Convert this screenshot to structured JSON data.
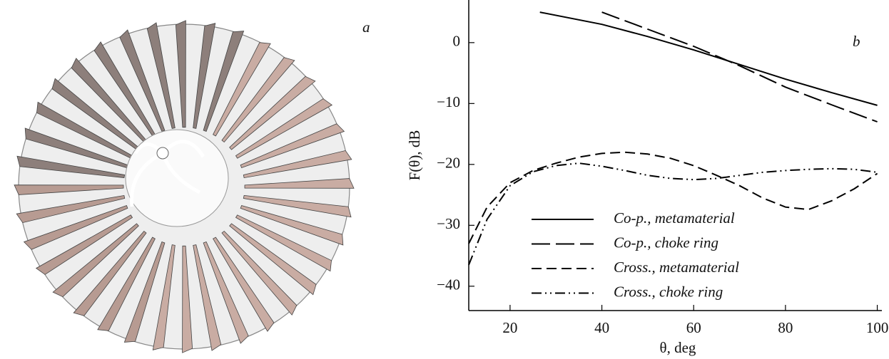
{
  "panel_a": {
    "label": "a"
  },
  "chart_data": {
    "type": "line",
    "panel_label": "b",
    "x_label": "θ, deg",
    "y_label": "F(θ), dB",
    "xlim": [
      11,
      101
    ],
    "ylim": [
      -44,
      7
    ],
    "xticks": [
      20,
      40,
      60,
      80,
      100
    ],
    "yticks": [
      {
        "value": -40,
        "label": "−40"
      },
      {
        "value": -30,
        "label": "−30"
      },
      {
        "value": -20,
        "label": "−20"
      },
      {
        "value": -10,
        "label": "−10"
      },
      0
    ],
    "series": [
      {
        "name": "Co-p., metamaterial",
        "color": "#000000",
        "dash": "solid",
        "x": [
          26.5,
          40,
          50,
          60,
          70,
          80,
          90,
          100
        ],
        "values": [
          5,
          3,
          1,
          -1.2,
          -3.6,
          -6,
          -8.2,
          -10.3
        ]
      },
      {
        "name": "Co-p., choke ring",
        "color": "#000000",
        "dash": "long-dash",
        "x": [
          40,
          50,
          60,
          70,
          80,
          90,
          100
        ],
        "values": [
          5,
          2.2,
          -0.6,
          -3.8,
          -7.3,
          -10.2,
          -13
        ]
      },
      {
        "name": "Cross., metamaterial",
        "color": "#000000",
        "dash": "dash",
        "x": [
          11,
          15,
          20,
          25,
          30,
          35,
          40,
          45,
          50,
          55,
          60,
          65,
          70,
          75,
          80,
          85,
          90,
          95,
          100
        ],
        "values": [
          -33,
          -27,
          -23,
          -21,
          -19.8,
          -18.8,
          -18.2,
          -18,
          -18.3,
          -19,
          -20.2,
          -21.8,
          -23.5,
          -25.5,
          -27,
          -27.4,
          -26,
          -24,
          -21.5
        ]
      },
      {
        "name": "Cross., choke ring",
        "color": "#000000",
        "dash": "dash-dot-dot",
        "x": [
          11,
          15,
          20,
          25,
          30,
          35,
          40,
          45,
          50,
          55,
          60,
          65,
          70,
          75,
          80,
          85,
          90,
          95,
          100
        ],
        "values": [
          -36.5,
          -29,
          -23.5,
          -21.2,
          -20.2,
          -19.8,
          -20.3,
          -21,
          -21.8,
          -22.3,
          -22.5,
          -22.3,
          -21.8,
          -21.3,
          -21,
          -20.8,
          -20.7,
          -20.8,
          -21.3
        ]
      }
    ]
  }
}
